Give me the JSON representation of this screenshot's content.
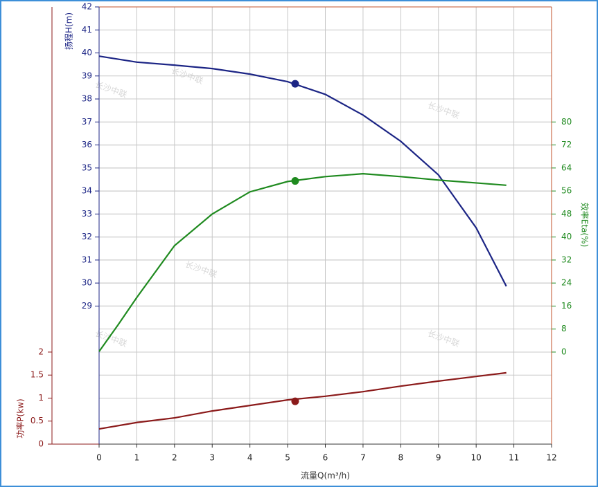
{
  "chart_data": {
    "type": "line",
    "x_label": "流量Q(m³/h)",
    "y_label": "扬程H(m)",
    "y2_label": "效率Eta(%)",
    "y3_label": "功率P(kw)",
    "watermark": "长沙中联",
    "xlim": [
      0,
      12
    ],
    "xticks": [
      0,
      1,
      2,
      3,
      4,
      5,
      6,
      7,
      8,
      9,
      10,
      11,
      12
    ],
    "ylim": [
      23,
      42
    ],
    "yticks": [
      29,
      30,
      31,
      32,
      33,
      34,
      35,
      36,
      37,
      38,
      39,
      40,
      41,
      42
    ],
    "y2lim": [
      -32,
      120
    ],
    "y2ticks": [
      0,
      8,
      16,
      24,
      32,
      40,
      48,
      56,
      64,
      72,
      80
    ],
    "y3lim": [
      0,
      9.5
    ],
    "y3ticks": [
      0,
      0.5,
      1,
      1.5,
      2
    ],
    "grid": true,
    "series": [
      {
        "axis": "y",
        "color": "#1c2585",
        "x": [
          0,
          1,
          2,
          3,
          4,
          5,
          6,
          7,
          8,
          9,
          10,
          10.8
        ],
        "values": [
          39.86,
          39.6,
          39.47,
          39.32,
          39.08,
          38.75,
          38.2,
          37.3,
          36.16,
          34.7,
          32.4,
          29.86
        ],
        "marker_x": 5.2,
        "marker_value": 38.66
      },
      {
        "axis": "y2",
        "color": "#1f8a1f",
        "x": [
          0,
          0.5,
          1,
          2,
          3,
          4,
          5,
          6,
          7,
          8,
          9,
          10,
          10.8
        ],
        "values": [
          0.2,
          9.4,
          19,
          37,
          48,
          55.7,
          59.3,
          61,
          62,
          61,
          59.8,
          58.8,
          58
        ],
        "marker_x": 5.2,
        "marker_value": 59.5
      },
      {
        "axis": "y3",
        "color": "#8b1a1a",
        "x": [
          0,
          1,
          2,
          3,
          4,
          5,
          6,
          7,
          8,
          9,
          10,
          10.8
        ],
        "values": [
          0.33,
          0.47,
          0.57,
          0.72,
          0.84,
          0.96,
          1.04,
          1.14,
          1.26,
          1.37,
          1.47,
          1.55
        ],
        "marker_x": 5.2,
        "marker_value": 0.93
      }
    ]
  }
}
